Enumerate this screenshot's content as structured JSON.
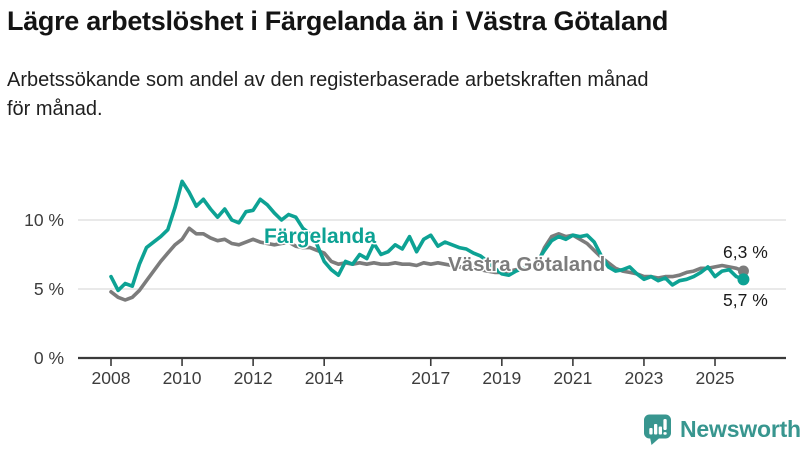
{
  "title": "Lägre arbetslöshet i Färgelanda än i Västra Götaland",
  "subtitle": {
    "line1": "Arbetssökande som andel av den registerbaserade arbetskraften månad",
    "line2": "för månad."
  },
  "colors": {
    "accent_teal": "#0da294",
    "series_gray": "#7c7c7c",
    "grid": "#dcdcdc",
    "axis": "#3a3a3a",
    "axis_text": "#3d3d3d",
    "value_label_text": "#1a1a1a",
    "logo_teal": "#38968f"
  },
  "chart_data": {
    "type": "line",
    "title": "Lägre arbetslöshet i Färgelanda än i Västra Götaland",
    "subtitle": "Arbetssökande som andel av den registerbaserade arbetskraften månad för månad.",
    "unit": "%",
    "grid": "horizontal",
    "legend_position": "inline",
    "ylim": [
      0,
      13.5
    ],
    "yticks": [
      {
        "value": 10,
        "label": "10 %"
      },
      {
        "value": 5,
        "label": "5 %"
      },
      {
        "value": 0,
        "label": "0 %"
      }
    ],
    "xticks": [
      {
        "value": 2008,
        "label": "2008"
      },
      {
        "value": 2010,
        "label": "2010"
      },
      {
        "value": 2012,
        "label": "2012"
      },
      {
        "value": 2014,
        "label": "2014"
      },
      {
        "value": 2017,
        "label": "2017"
      },
      {
        "value": 2019,
        "label": "2019"
      },
      {
        "value": 2021,
        "label": "2021"
      },
      {
        "value": 2023,
        "label": "2023"
      },
      {
        "value": 2025,
        "label": "2025"
      }
    ],
    "x": [
      2008.0,
      2008.2,
      2008.4,
      2008.6,
      2008.8,
      2009.0,
      2009.2,
      2009.4,
      2009.6,
      2009.8,
      2010.0,
      2010.2,
      2010.4,
      2010.6,
      2010.8,
      2011.0,
      2011.2,
      2011.4,
      2011.6,
      2011.8,
      2012.0,
      2012.2,
      2012.4,
      2012.6,
      2012.8,
      2013.0,
      2013.2,
      2013.4,
      2013.6,
      2013.8,
      2014.0,
      2014.2,
      2014.4,
      2014.6,
      2014.8,
      2015.0,
      2015.2,
      2015.4,
      2015.6,
      2015.8,
      2016.0,
      2016.2,
      2016.4,
      2016.6,
      2016.8,
      2017.0,
      2017.2,
      2017.4,
      2017.6,
      2017.8,
      2018.0,
      2018.2,
      2018.4,
      2018.6,
      2018.8,
      2019.0,
      2019.2,
      2019.4,
      2019.6,
      2019.8,
      2020.0,
      2020.2,
      2020.4,
      2020.6,
      2020.8,
      2021.0,
      2021.2,
      2021.4,
      2021.6,
      2021.8,
      2022.0,
      2022.2,
      2022.4,
      2022.6,
      2022.8,
      2023.0,
      2023.2,
      2023.4,
      2023.6,
      2023.8,
      2024.0,
      2024.2,
      2024.4,
      2024.6,
      2024.8,
      2025.0,
      2025.2,
      2025.4,
      2025.6,
      2025.8
    ],
    "series": [
      {
        "name": "Färgelanda",
        "color": "#0da294",
        "end_label": "5,7 %",
        "end_value": 5.7,
        "values": [
          5.9,
          4.9,
          5.4,
          5.2,
          6.8,
          8.0,
          8.4,
          8.8,
          9.3,
          10.9,
          12.8,
          12.0,
          11.0,
          11.5,
          10.8,
          10.2,
          10.8,
          10.0,
          9.8,
          10.6,
          10.7,
          11.5,
          11.1,
          10.5,
          10.0,
          10.4,
          10.2,
          9.4,
          9.0,
          8.2,
          7.0,
          6.4,
          6.0,
          7.0,
          6.8,
          7.5,
          7.2,
          8.3,
          7.5,
          7.7,
          8.2,
          7.9,
          8.8,
          7.7,
          8.6,
          8.9,
          8.1,
          8.4,
          8.2,
          8.0,
          7.9,
          7.6,
          7.4,
          7.0,
          6.5,
          6.1,
          6.0,
          6.3,
          6.5,
          6.7,
          7.0,
          7.8,
          8.5,
          8.8,
          8.6,
          8.9,
          8.8,
          8.9,
          8.4,
          7.4,
          6.6,
          6.3,
          6.4,
          6.6,
          6.1,
          5.7,
          5.9,
          5.6,
          5.8,
          5.3,
          5.6,
          5.7,
          5.9,
          6.2,
          6.6,
          5.9,
          6.3,
          6.4,
          5.9,
          5.7
        ]
      },
      {
        "name": "Västra Götaland",
        "color": "#7c7c7c",
        "end_label": "6,3 %",
        "end_value": 6.3,
        "values": [
          4.8,
          4.4,
          4.2,
          4.4,
          4.9,
          5.6,
          6.3,
          7.0,
          7.6,
          8.2,
          8.6,
          9.4,
          9.0,
          9.0,
          8.7,
          8.5,
          8.6,
          8.3,
          8.2,
          8.4,
          8.6,
          8.4,
          8.3,
          8.2,
          8.3,
          8.4,
          8.1,
          8.0,
          8.0,
          7.8,
          7.6,
          7.0,
          6.8,
          6.9,
          6.8,
          6.9,
          6.8,
          6.9,
          6.8,
          6.8,
          6.9,
          6.8,
          6.8,
          6.7,
          6.9,
          6.8,
          6.9,
          6.8,
          6.7,
          6.6,
          6.6,
          6.5,
          6.4,
          6.3,
          6.2,
          6.2,
          6.3,
          6.4,
          6.4,
          6.5,
          6.8,
          8.0,
          8.8,
          9.0,
          8.8,
          8.9,
          8.6,
          8.3,
          7.8,
          7.3,
          6.9,
          6.5,
          6.3,
          6.2,
          6.1,
          5.9,
          5.9,
          5.8,
          5.9,
          5.9,
          6.0,
          6.2,
          6.3,
          6.5,
          6.5,
          6.6,
          6.7,
          6.6,
          6.5,
          6.3
        ]
      }
    ]
  },
  "logo": {
    "text": "Newsworthy",
    "icon": "newsworthy-chart-bubble-icon"
  }
}
